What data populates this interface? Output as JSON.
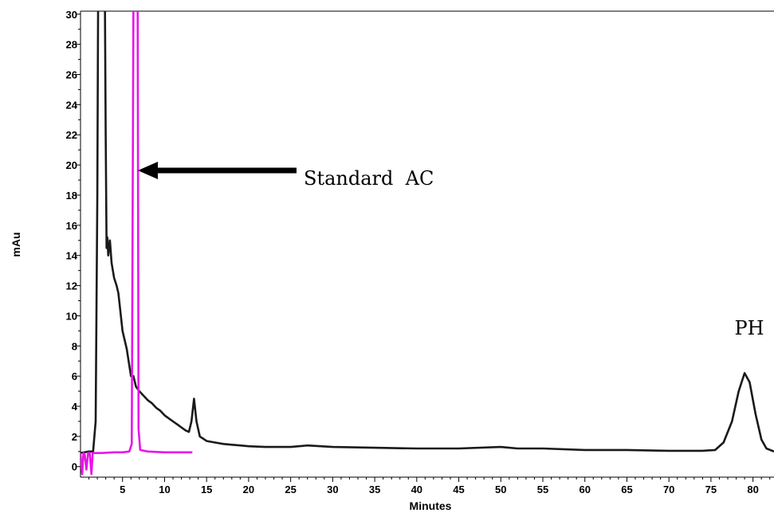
{
  "chart_data": {
    "type": "line",
    "title": "",
    "xlabel": "Minutes",
    "ylabel": "mAu",
    "xlim": [
      0,
      82.5
    ],
    "ylim": [
      -0.7,
      30.2
    ],
    "x_ticks": [
      5,
      10,
      15,
      20,
      25,
      30,
      35,
      40,
      45,
      50,
      55,
      60,
      65,
      70,
      75,
      80
    ],
    "y_ticks": [
      0,
      2,
      4,
      6,
      8,
      10,
      12,
      14,
      16,
      18,
      20,
      22,
      24,
      26,
      28,
      30
    ],
    "grid": false,
    "colors": {
      "sample": "#1a1a1a",
      "standard": "#e815e8"
    },
    "series": [
      {
        "color": "#1a1a1a",
        "points": [
          [
            0,
            0.9
          ],
          [
            1.0,
            1.0
          ],
          [
            1.5,
            1.0
          ],
          [
            1.8,
            3
          ],
          [
            2.0,
            18
          ],
          [
            2.1,
            31
          ],
          [
            2.9,
            31
          ],
          [
            3.0,
            22
          ],
          [
            3.1,
            14.5
          ],
          [
            3.2,
            15.2
          ],
          [
            3.3,
            14.0
          ],
          [
            3.5,
            15.0
          ],
          [
            3.7,
            13.5
          ],
          [
            4.0,
            12.5
          ],
          [
            4.3,
            12.0
          ],
          [
            4.5,
            11.5
          ],
          [
            4.7,
            10.5
          ],
          [
            5.0,
            9.0
          ],
          [
            5.5,
            7.8
          ],
          [
            6.0,
            6.0
          ],
          [
            6.3,
            6.0
          ],
          [
            6.6,
            5.3
          ],
          [
            7,
            5.0
          ],
          [
            7.5,
            4.7
          ],
          [
            8,
            4.4
          ],
          [
            8.5,
            4.2
          ],
          [
            9,
            3.9
          ],
          [
            9.5,
            3.7
          ],
          [
            10,
            3.4
          ],
          [
            10.5,
            3.2
          ],
          [
            11,
            3.0
          ],
          [
            11.5,
            2.8
          ],
          [
            12,
            2.6
          ],
          [
            12.5,
            2.4
          ],
          [
            12.9,
            2.3
          ],
          [
            13.2,
            3.0
          ],
          [
            13.5,
            4.5
          ],
          [
            13.8,
            3.0
          ],
          [
            14.2,
            2.0
          ],
          [
            15,
            1.7
          ],
          [
            16,
            1.6
          ],
          [
            17,
            1.5
          ],
          [
            18,
            1.45
          ],
          [
            19,
            1.4
          ],
          [
            20,
            1.35
          ],
          [
            22,
            1.3
          ],
          [
            25,
            1.3
          ],
          [
            27,
            1.4
          ],
          [
            30,
            1.3
          ],
          [
            35,
            1.25
          ],
          [
            40,
            1.2
          ],
          [
            45,
            1.2
          ],
          [
            50,
            1.3
          ],
          [
            52,
            1.2
          ],
          [
            55,
            1.2
          ],
          [
            60,
            1.1
          ],
          [
            62,
            1.1
          ],
          [
            65,
            1.1
          ],
          [
            70,
            1.05
          ],
          [
            74,
            1.05
          ],
          [
            75.5,
            1.1
          ],
          [
            76.5,
            1.6
          ],
          [
            77.5,
            3.0
          ],
          [
            78.3,
            5.0
          ],
          [
            79.0,
            6.2
          ],
          [
            79.6,
            5.6
          ],
          [
            80.3,
            3.5
          ],
          [
            81,
            1.8
          ],
          [
            81.6,
            1.2
          ],
          [
            82.5,
            1.0
          ]
        ]
      },
      {
        "color": "#e815e8",
        "points": [
          [
            0,
            0.9
          ],
          [
            0.2,
            -0.5
          ],
          [
            0.35,
            0.9
          ],
          [
            0.5,
            0.8
          ],
          [
            0.7,
            -0.2
          ],
          [
            0.9,
            0.9
          ],
          [
            1.1,
            0.9
          ],
          [
            1.3,
            -0.5
          ],
          [
            1.45,
            0.9
          ],
          [
            2.5,
            0.9
          ],
          [
            4,
            0.95
          ],
          [
            5,
            0.95
          ],
          [
            5.8,
            1.0
          ],
          [
            6.1,
            1.5
          ],
          [
            6.3,
            31
          ],
          [
            6.8,
            31
          ],
          [
            6.9,
            2.5
          ],
          [
            7.1,
            1.1
          ],
          [
            8,
            1.0
          ],
          [
            10,
            0.95
          ],
          [
            12,
            0.95
          ],
          [
            13.3,
            0.95
          ]
        ]
      }
    ],
    "annotations": [
      {
        "text": "Standard  AC",
        "arrow_to": [
          6.7,
          19.4
        ]
      },
      {
        "text": "PH"
      }
    ]
  }
}
